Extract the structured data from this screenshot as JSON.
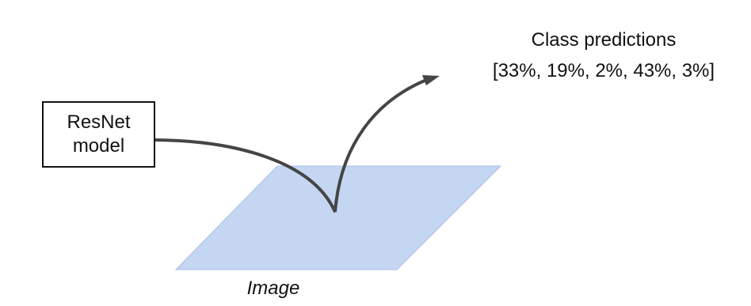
{
  "model": {
    "line1": "ResNet",
    "line2": "model"
  },
  "image": {
    "label": "Image",
    "fill_color": "#c5d6f2",
    "stroke_color": "#a9bfe6"
  },
  "predictions": {
    "title": "Class predictions",
    "values": "[33%, 19%, 2%, 43%, 3%]"
  },
  "arrow": {
    "color": "#454545"
  }
}
